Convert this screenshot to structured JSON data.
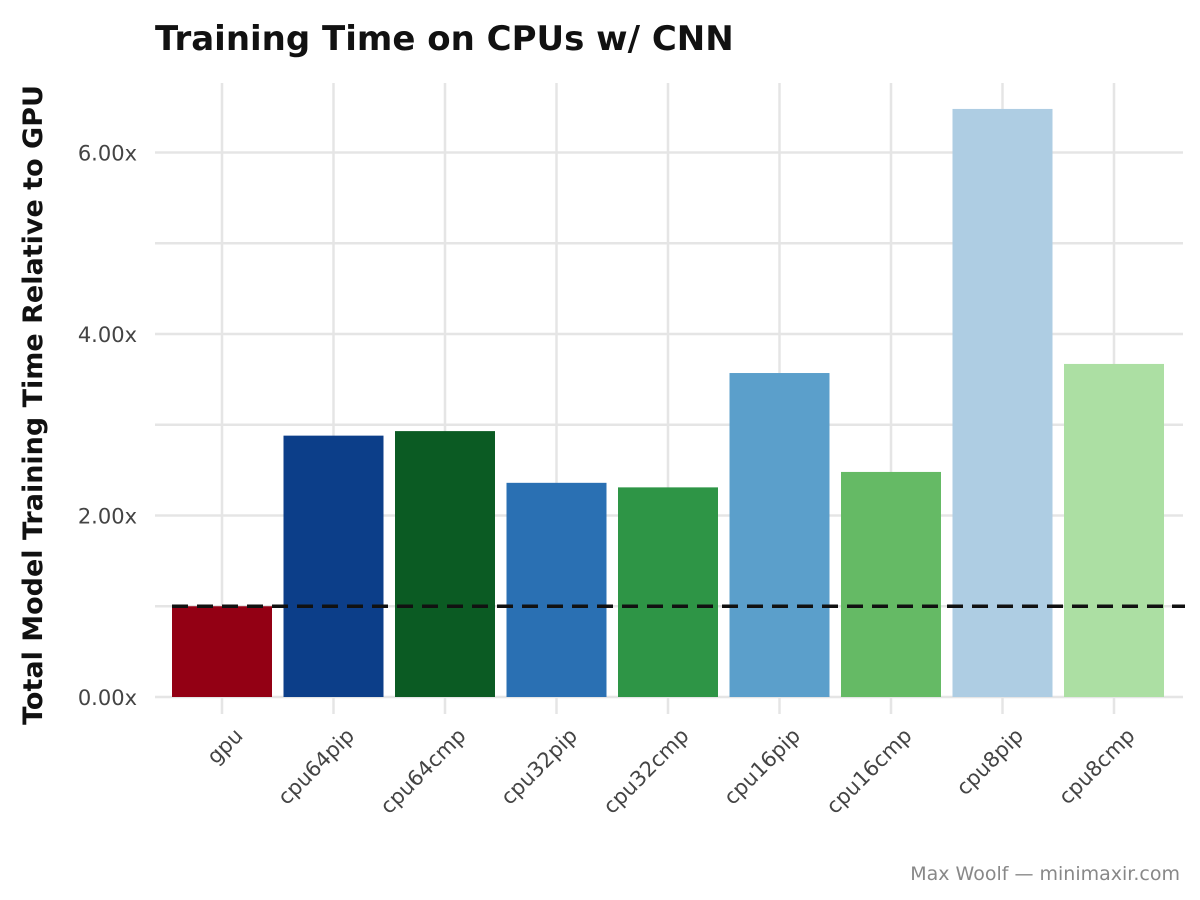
{
  "chart_data": {
    "type": "bar",
    "title": "Training Time on CPUs w/ CNN",
    "ylabel": "Total Model Training Time Relative to GPU",
    "xlabel": "",
    "caption": "Max Woolf — minimaxir.com",
    "categories": [
      "gpu",
      "cpu64pip",
      "cpu64cmp",
      "cpu32pip",
      "cpu32cmp",
      "cpu16pip",
      "cpu16cmp",
      "cpu8pip",
      "cpu8cmp"
    ],
    "values": [
      1.0,
      2.88,
      2.93,
      2.36,
      2.31,
      3.57,
      2.48,
      6.48,
      3.67
    ],
    "colors": [
      "#930014",
      "#0c3e89",
      "#0b5b23",
      "#2a70b3",
      "#2e9546",
      "#5b9fcb",
      "#65ba65",
      "#aecde3",
      "#acdfa3"
    ],
    "ylim": [
      0,
      6.8
    ],
    "yticks": [
      0,
      2,
      4,
      6
    ],
    "ytick_labels": [
      "0.00x",
      "2.00x",
      "4.00x",
      "6.00x"
    ],
    "reference_line": {
      "value": 1.0,
      "style": "dashed",
      "color": "#111111"
    },
    "grid": true,
    "legend": "none"
  }
}
